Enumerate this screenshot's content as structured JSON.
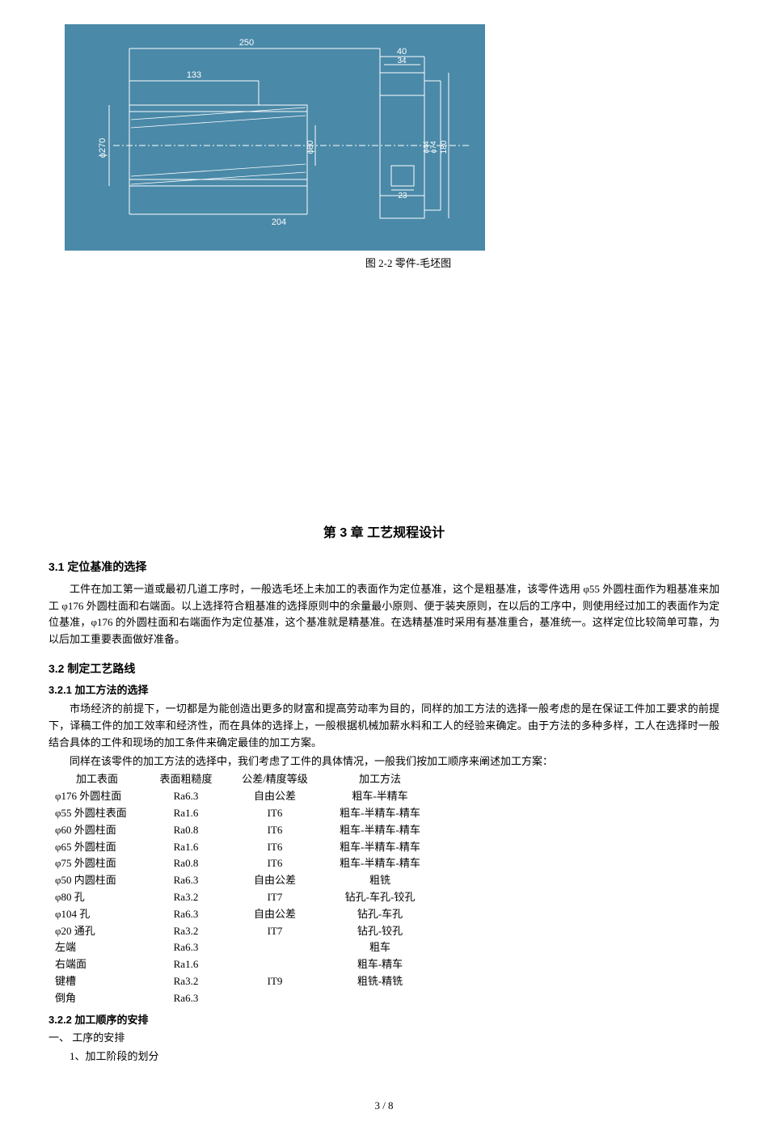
{
  "figure": {
    "caption": "图 2-2 零件-毛坯图",
    "bg_color": "#4a89a8",
    "line_color": "#ffffff",
    "dims": {
      "d250": "250",
      "d133": "133",
      "d204": "204",
      "d40": "40",
      "d34": "34",
      "d23": "23",
      "d180": "180",
      "d270": "270",
      "d80": "80",
      "d44": "44",
      "d74": "74"
    }
  },
  "chapter": {
    "title": "第 3 章  工艺规程设计"
  },
  "s31": {
    "title": "3.1 定位基准的选择",
    "p1": "工件在加工第一道或最初几道工序时，一般选毛坯上未加工的表面作为定位基准，这个是粗基准，该零件选用 φ55 外圆柱面作为粗基准来加工 φ176 外圆柱面和右端面。以上选择符合粗基准的选择原则中的余量最小原则、便于装夹原则，在以后的工序中，则使用经过加工的表面作为定位基准，φ176 的外圆柱面和右端面作为定位基准，这个基准就是精基准。在选精基准时采用有基准重合，基准统一。这样定位比较简单可靠，为以后加工重要表面做好准备。"
  },
  "s32": {
    "title": "3.2 制定工艺路线"
  },
  "s321": {
    "title": "3.2.1 加工方法的选择",
    "p1": "市场经济的前提下，一切都是为能创造出更多的财富和提高劳动率为目的，同样的加工方法的选择一般考虑的是在保证工件加工要求的前提下，译稿工件的加工效率和经济性，而在具体的选择上，一般根据机械加薪水料和工人的经验来确定。由于方法的多种多样，工人在选择时一般结合具体的工件和现场的加工条件来确定最佳的加工方案。",
    "p2": "同样在该零件的加工方法的选择中，我们考虑了工件的具体情况，一般我们按加工顺序来阐述加工方案：",
    "headers": [
      "加工表面",
      "表面粗糙度",
      "公差/精度等级",
      "加工方法"
    ],
    "rows": [
      [
        "φ176 外圆柱面",
        "Ra6.3",
        "自由公差",
        "粗车-半精车"
      ],
      [
        "φ55 外圆柱表面",
        "Ra1.6",
        "IT6",
        "粗车-半精车-精车"
      ],
      [
        "φ60 外圆柱面",
        "Ra0.8",
        "IT6",
        "粗车-半精车-精车"
      ],
      [
        "φ65 外圆柱面",
        "Ra1.6",
        "IT6",
        "粗车-半精车-精车"
      ],
      [
        "φ75 外圆柱面",
        "Ra0.8",
        "IT6",
        "粗车-半精车-精车"
      ],
      [
        "φ50 内圆柱面",
        "Ra6.3",
        "自由公差",
        "粗铣"
      ],
      [
        "φ80 孔",
        "Ra3.2",
        "IT7",
        "钻孔-车孔-铰孔"
      ],
      [
        "φ104 孔",
        "Ra6.3",
        "自由公差",
        "钻孔-车孔"
      ],
      [
        "φ20 通孔",
        "Ra3.2",
        "IT7",
        "钻孔-铰孔"
      ],
      [
        "左端",
        "Ra6.3",
        "",
        "粗车"
      ],
      [
        "右端面",
        "Ra1.6",
        "",
        "粗车-精车"
      ],
      [
        "键槽",
        "Ra3.2",
        "IT9",
        "粗铣-精铣"
      ],
      [
        "倒角",
        "Ra6.3",
        "",
        ""
      ]
    ]
  },
  "s322": {
    "title": "3.2.2 加工顺序的安排",
    "line1": "一、  工序的安排",
    "line2": "1、加工阶段的划分"
  },
  "pagenum": "3 / 8"
}
